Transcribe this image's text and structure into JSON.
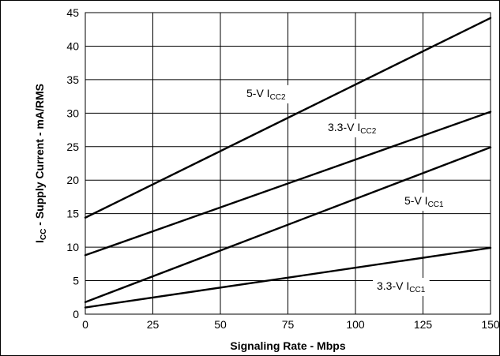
{
  "chart_data": {
    "type": "line",
    "title": "",
    "xlabel": "Signaling Rate - Mbps",
    "ylabel": {
      "main": "I",
      "sub": "CC",
      "rest": " - Supply Current - mA/RMS"
    },
    "xlim": [
      0,
      150
    ],
    "ylim": [
      0,
      45
    ],
    "x_ticks": [
      0,
      25,
      50,
      75,
      100,
      125,
      150
    ],
    "y_ticks": [
      0,
      5,
      10,
      15,
      20,
      25,
      30,
      35,
      40,
      45
    ],
    "grid": true,
    "legend": "none",
    "series": [
      {
        "label_main": "5-V I",
        "label_sub": "CC2",
        "x": [
          0,
          150
        ],
        "y": [
          14.4,
          44.2
        ]
      },
      {
        "label_main": "3.3-V I",
        "label_sub": "CC2",
        "x": [
          0,
          150
        ],
        "y": [
          8.8,
          30.2
        ]
      },
      {
        "label_main": "5-V I",
        "label_sub": "CC1",
        "x": [
          0,
          150
        ],
        "y": [
          1.8,
          24.9
        ]
      },
      {
        "label_main": "3.3-V I",
        "label_sub": "CC1",
        "x": [
          0,
          150
        ],
        "y": [
          1.0,
          9.9
        ]
      }
    ]
  }
}
